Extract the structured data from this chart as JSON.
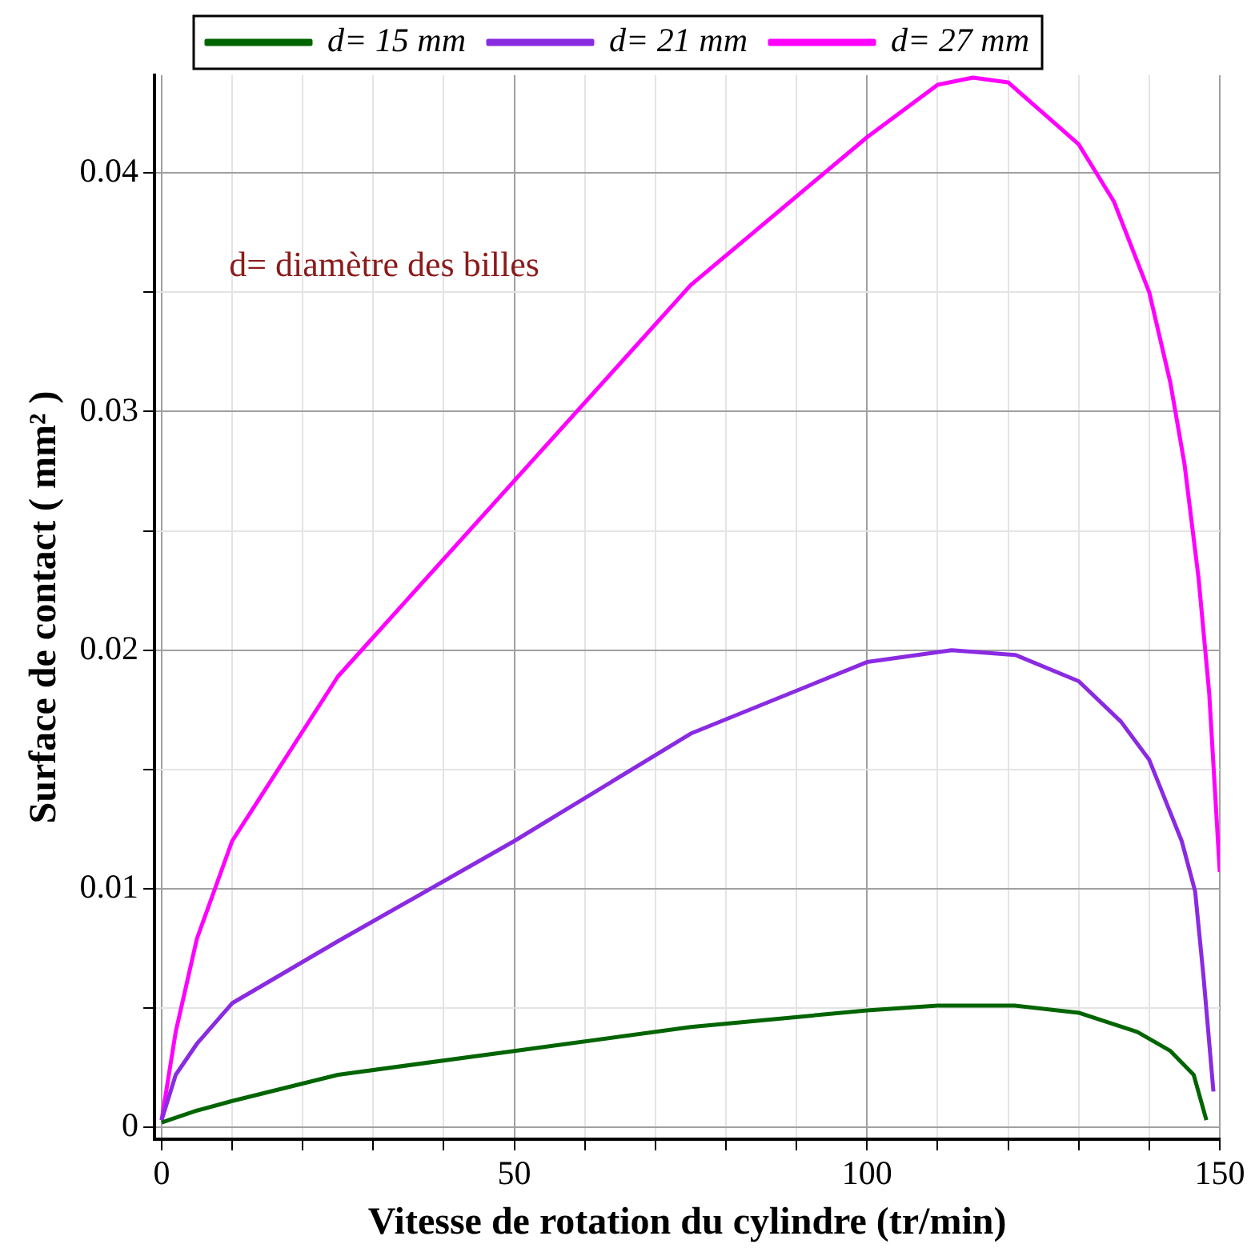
{
  "chart_data": {
    "type": "line",
    "xlabel": "Vitesse de rotation du cylindre (tr/min)",
    "ylabel": "Surface de contact ( mm² )",
    "annotations": [
      "d= diamètre des billes"
    ],
    "legend": "top",
    "grid": true,
    "marker": "none",
    "line_style": "solid",
    "xlim": [
      -1,
      150
    ],
    "ylim": [
      -0.0005,
      0.0441
    ],
    "xticks": [
      0,
      {
        "value": 10,
        "label": null
      },
      {
        "value": 20,
        "label": null
      },
      {
        "value": 30,
        "label": null
      },
      {
        "value": 40,
        "label": null
      },
      50,
      {
        "value": 60,
        "label": null
      },
      {
        "value": 70,
        "label": null
      },
      {
        "value": 80,
        "label": null
      },
      {
        "value": 90,
        "label": null
      },
      100,
      {
        "value": 110,
        "label": null
      },
      {
        "value": 120,
        "label": null
      },
      {
        "value": 130,
        "label": null
      },
      {
        "value": 140,
        "label": null
      },
      150
    ],
    "yticks": [
      0,
      {
        "value": 0.005,
        "label": null
      },
      0.01,
      {
        "value": 0.015,
        "label": null
      },
      0.02,
      {
        "value": 0.025,
        "label": null
      },
      0.03,
      {
        "value": 0.035,
        "label": null
      },
      0.04
    ],
    "series": [
      {
        "name": "d= 15 mm",
        "color": "#006400",
        "x": [
          0,
          5,
          10,
          25,
          50,
          75,
          100,
          110,
          121,
          130,
          138.3,
          143,
          146.3,
          148.1
        ],
        "values": [
          0.0002,
          0.0007,
          0.0011,
          0.0022,
          0.0032,
          0.0042,
          0.0049,
          0.0051,
          0.0051,
          0.0048,
          0.004,
          0.0032,
          0.0022,
          0.0003
        ]
      },
      {
        "name": "d= 21 mm",
        "color": "#8a2be2",
        "x": [
          0,
          2,
          5,
          10,
          25,
          50,
          75,
          100,
          112,
          121,
          130,
          136,
          140,
          144.6,
          146.5,
          147.7,
          149.1
        ],
        "values": [
          0.0003,
          0.0022,
          0.0035,
          0.0052,
          0.0078,
          0.012,
          0.0165,
          0.0195,
          0.02,
          0.0198,
          0.0187,
          0.017,
          0.0154,
          0.012,
          0.0099,
          0.0063,
          0.0015
        ]
      },
      {
        "name": "d= 27 mm",
        "color": "#ff00ff",
        "x": [
          0,
          2,
          5,
          10,
          25,
          50,
          75,
          100,
          110,
          115,
          120,
          125,
          130,
          135,
          140,
          143,
          145,
          147,
          148.5,
          150
        ],
        "values": [
          0.0003,
          0.004,
          0.0079,
          0.012,
          0.0189,
          0.0271,
          0.0353,
          0.0415,
          0.0437,
          0.044,
          0.0438,
          0.0425,
          0.0412,
          0.0388,
          0.035,
          0.0312,
          0.0278,
          0.023,
          0.0182,
          0.0107
        ]
      }
    ]
  }
}
